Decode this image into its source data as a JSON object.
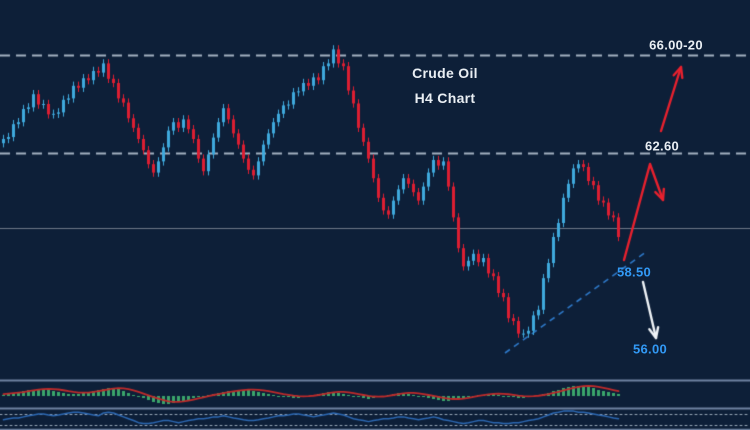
{
  "title": {
    "line1": "Crude Oil",
    "line2": "H4 Chart"
  },
  "levels": {
    "resistance_top": {
      "label": "66.00-20",
      "price": 66.1,
      "style": "dashed"
    },
    "resistance_mid": {
      "label": "62.60",
      "price": 62.6,
      "style": "dashed"
    },
    "current_line": {
      "price": 59.92,
      "style": "solid"
    },
    "support_break": {
      "label": "58.50"
    },
    "target_down": {
      "label": "56.00"
    }
  },
  "colors": {
    "background": "#0d1f38",
    "bull_candle": "#3fa9dc",
    "bear_candle": "#dc1e32",
    "dashed_level": "#a4b2c2",
    "solid_level": "#6e7887",
    "trendline": "#2e79c9",
    "arrow_red": "#e8212e",
    "arrow_white": "#f0f4f8",
    "level_text": "#e9eef3",
    "support_text": "#3299f5",
    "histogram": "#3aa56b",
    "signal_line": "#bf2b2b",
    "oscillator_line": "#2d69b4",
    "panel_separator": "#8195b5",
    "dotted_level": "#9aa8b8"
  },
  "chart_data": {
    "type": "candlestick",
    "instrument": "Crude Oil",
    "timeframe": "H4",
    "title": "Crude Oil H4 Chart",
    "bars": 124,
    "first_open": 62.95,
    "wick": 0.15,
    "open_rule": "previous_close",
    "closes": [
      63.1,
      63.17,
      63.63,
      63.7,
      64.17,
      64.23,
      64.7,
      64.33,
      64.35,
      63.98,
      64.0,
      64.05,
      64.5,
      64.55,
      65.0,
      64.93,
      65.27,
      65.2,
      65.53,
      65.47,
      65.8,
      65.25,
      65.1,
      64.55,
      64.4,
      63.84,
      63.5,
      63.1,
      62.7,
      62.2,
      61.9,
      62.3,
      62.8,
      63.4,
      63.7,
      63.5,
      63.8,
      63.45,
      63.1,
      62.4,
      61.95,
      62.55,
      63.15,
      63.7,
      64.2,
      63.8,
      63.3,
      62.9,
      62.4,
      62.0,
      61.8,
      62.3,
      62.9,
      63.3,
      63.7,
      64.0,
      64.3,
      64.33,
      64.77,
      64.8,
      65.1,
      65.0,
      65.3,
      65.2,
      65.7,
      65.8,
      66.3,
      65.8,
      65.7,
      64.83,
      64.37,
      63.5,
      63.0,
      62.4,
      61.7,
      61.0,
      60.55,
      60.4,
      60.9,
      61.3,
      61.7,
      61.5,
      61.2,
      60.9,
      61.4,
      61.9,
      62.35,
      62.15,
      62.3,
      61.4,
      60.3,
      59.2,
      58.55,
      58.75,
      59.0,
      58.7,
      58.85,
      58.3,
      58.2,
      57.6,
      57.45,
      56.7,
      56.6,
      56.15,
      56.15,
      56.25,
      56.8,
      57.0,
      58.13,
      58.67,
      59.6,
      60.1,
      61.0,
      61.5,
      62.05,
      62.2,
      62.1,
      61.6,
      61.45,
      60.9,
      60.83,
      60.37,
      60.3,
      59.6
    ],
    "lines": [
      {
        "price": 66.1,
        "style": "dashed"
      },
      {
        "price": 62.6,
        "style": "dashed"
      },
      {
        "price": 59.92,
        "style": "solid"
      }
    ],
    "annotations": {
      "trendline": {
        "from": [
          505,
          353
        ],
        "to": [
          646,
          252
        ],
        "style": "dashed"
      },
      "arrow_pullback": {
        "points": [
          [
            624,
            260
          ],
          [
            650,
            164
          ],
          [
            663,
            200
          ]
        ],
        "color": "red"
      },
      "arrow_breakout": {
        "points": [
          [
            661,
            131
          ],
          [
            681,
            67
          ]
        ],
        "color": "red"
      },
      "arrow_down": {
        "points": [
          [
            643,
            282
          ],
          [
            656,
            338
          ]
        ],
        "color": "white"
      }
    },
    "indicators": {
      "oscillator_histogram": {
        "type": "histogram",
        "values": [
          1,
          2,
          3,
          4,
          5,
          6,
          6,
          7,
          7,
          6,
          5,
          4,
          3,
          2,
          2,
          2,
          3,
          4,
          5,
          6,
          7,
          8,
          8,
          7,
          5,
          3,
          1,
          0,
          -2,
          -4,
          -6,
          -7,
          -8,
          -8,
          -7,
          -6,
          -5,
          -4,
          -2,
          -1,
          0,
          1,
          2,
          3,
          4,
          5,
          5,
          6,
          6,
          6,
          5,
          4,
          3,
          2,
          1,
          0,
          -1,
          -1,
          -2,
          -2,
          -1,
          0,
          1,
          2,
          3,
          4,
          4,
          3,
          2,
          1,
          0,
          -1,
          -2,
          -3,
          -2,
          -1,
          0,
          1,
          2,
          3,
          3,
          2,
          1,
          0,
          -1,
          -2,
          -3,
          -4,
          -5,
          -5,
          -4,
          -3,
          -2,
          -1,
          0,
          1,
          1,
          2,
          2,
          1,
          0,
          -1,
          -1,
          -2,
          -2,
          -1,
          0,
          1,
          2,
          3,
          5,
          6,
          8,
          9,
          10,
          10,
          10,
          9,
          8,
          6,
          5,
          4,
          3,
          2
        ]
      },
      "rsi_line": {
        "type": "line",
        "levels": [
          70,
          30
        ],
        "values": [
          48,
          52,
          55,
          55,
          59,
          63,
          66,
          70,
          70,
          66,
          63,
          66,
          70,
          74,
          77,
          77,
          74,
          70,
          66,
          63,
          74,
          77,
          74,
          66,
          59,
          52,
          45,
          37,
          34,
          34,
          37,
          41,
          45,
          45,
          41,
          37,
          41,
          45,
          48,
          52,
          52,
          55,
          59,
          59,
          63,
          59,
          55,
          52,
          48,
          45,
          45,
          48,
          52,
          55,
          59,
          63,
          63,
          66,
          70,
          70,
          66,
          63,
          59,
          63,
          66,
          70,
          74,
          70,
          66,
          59,
          52,
          48,
          45,
          41,
          45,
          48,
          52,
          52,
          55,
          59,
          59,
          55,
          52,
          48,
          52,
          55,
          59,
          55,
          48,
          45,
          41,
          37,
          34,
          37,
          41,
          45,
          45,
          41,
          37,
          37,
          34,
          34,
          37,
          37,
          41,
          45,
          48,
          52,
          59,
          66,
          74,
          77,
          81,
          81,
          81,
          77,
          77,
          74,
          70,
          66,
          63,
          59,
          55,
          52
        ]
      }
    }
  }
}
